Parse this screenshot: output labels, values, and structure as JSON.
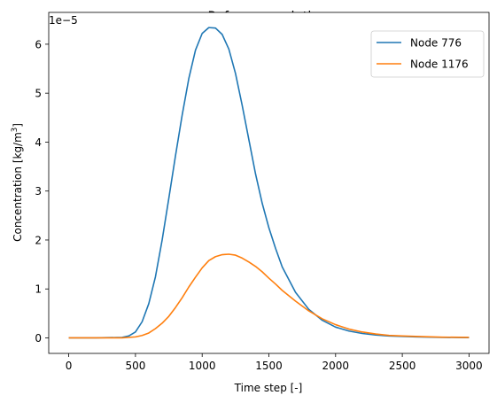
{
  "chart_data": {
    "type": "line",
    "title": "Reference solution",
    "xlabel": "Time step [-]",
    "ylabel": "Concentration [kg/m",
    "ylabel_superscript": "3",
    "ylabel_suffix": "]",
    "y_offset_label": "1e−5",
    "xlim": [
      -150,
      3150
    ],
    "ylim": [
      -0.317,
      6.65
    ],
    "x_ticks": [
      0,
      500,
      1000,
      1500,
      2000,
      2500,
      3000
    ],
    "y_ticks": [
      0,
      1,
      2,
      3,
      4,
      5,
      6
    ],
    "grid": false,
    "legend_position": "top-right",
    "series": [
      {
        "name": "Node 776",
        "color": "#1f77b4",
        "x": [
          0,
          200,
          400,
          450,
          500,
          550,
          600,
          650,
          700,
          750,
          800,
          850,
          900,
          950,
          1000,
          1050,
          1100,
          1150,
          1200,
          1250,
          1300,
          1350,
          1400,
          1450,
          1500,
          1550,
          1600,
          1700,
          1800,
          1900,
          2000,
          2100,
          2200,
          2300,
          2400,
          2500,
          2600,
          2800,
          3000
        ],
        "y": [
          0,
          0,
          0.01,
          0.04,
          0.12,
          0.33,
          0.7,
          1.25,
          2.0,
          2.85,
          3.72,
          4.55,
          5.3,
          5.88,
          6.22,
          6.34,
          6.33,
          6.2,
          5.9,
          5.4,
          4.75,
          4.05,
          3.35,
          2.75,
          2.25,
          1.83,
          1.45,
          0.93,
          0.58,
          0.36,
          0.22,
          0.14,
          0.09,
          0.06,
          0.04,
          0.03,
          0.02,
          0.01,
          0.005
        ]
      },
      {
        "name": "Node 1176",
        "color": "#ff7f0e",
        "x": [
          0,
          200,
          400,
          500,
          550,
          600,
          650,
          700,
          750,
          800,
          850,
          900,
          950,
          1000,
          1050,
          1100,
          1150,
          1200,
          1250,
          1300,
          1350,
          1400,
          1450,
          1500,
          1550,
          1600,
          1700,
          1800,
          1900,
          2000,
          2100,
          2200,
          2300,
          2400,
          2500,
          2600,
          2800,
          3000
        ],
        "y": [
          0,
          0,
          0,
          0.02,
          0.05,
          0.1,
          0.19,
          0.3,
          0.44,
          0.62,
          0.82,
          1.04,
          1.24,
          1.43,
          1.58,
          1.66,
          1.7,
          1.71,
          1.69,
          1.63,
          1.55,
          1.46,
          1.35,
          1.22,
          1.1,
          0.97,
          0.75,
          0.55,
          0.39,
          0.27,
          0.18,
          0.12,
          0.08,
          0.05,
          0.04,
          0.03,
          0.015,
          0.01
        ]
      }
    ]
  }
}
